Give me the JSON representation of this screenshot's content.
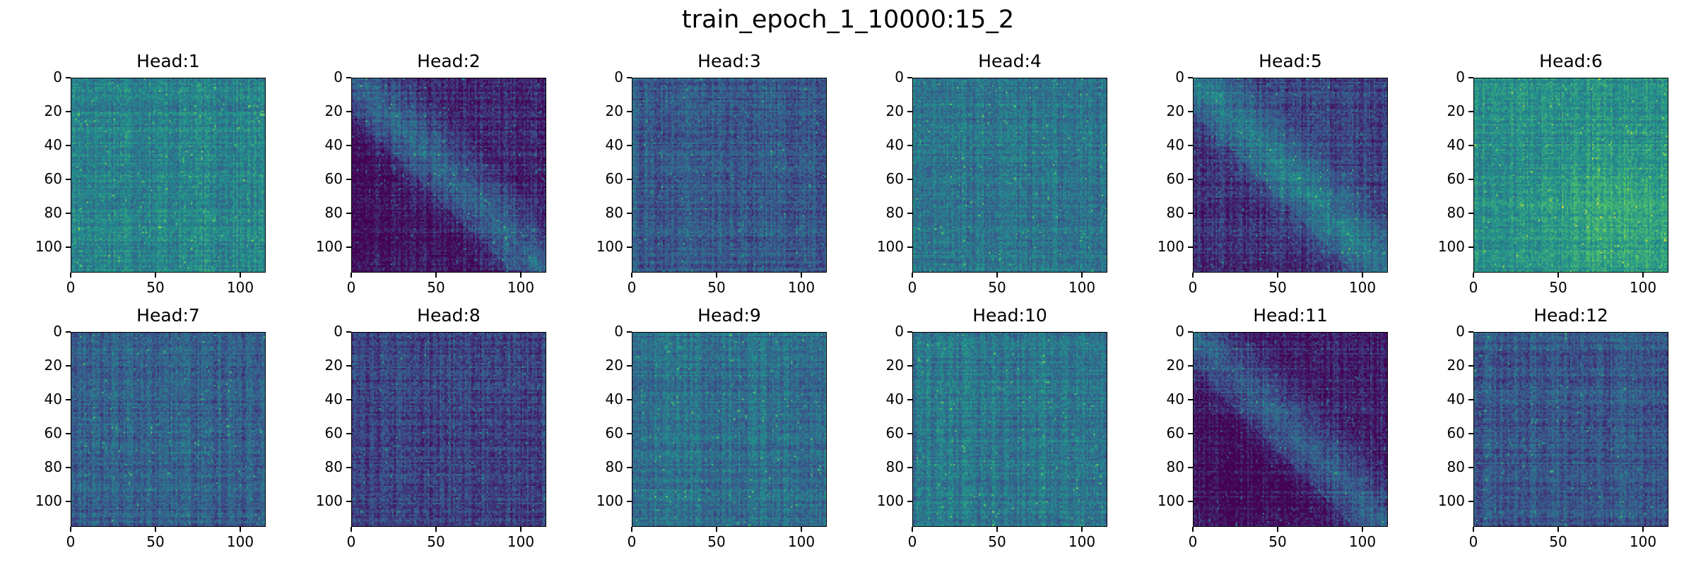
{
  "figure": {
    "title": "train_epoch_1_10000:15_2"
  },
  "chart_data": [
    {
      "type": "heatmap",
      "title": "Head:1",
      "xticks": [
        0,
        50,
        100
      ],
      "yticks": [
        0,
        20,
        40,
        60,
        80,
        100
      ],
      "xlim": [
        0,
        115
      ],
      "ylim": [
        115,
        0
      ],
      "colormap": "viridis",
      "pattern": "uniform-mid",
      "base_level": 0.45
    },
    {
      "type": "heatmap",
      "title": "Head:2",
      "xticks": [
        0,
        50,
        100
      ],
      "yticks": [
        0,
        20,
        40,
        60,
        80,
        100
      ],
      "xlim": [
        0,
        115
      ],
      "ylim": [
        115,
        0
      ],
      "colormap": "viridis",
      "pattern": "diagonal",
      "base_level": 0.12
    },
    {
      "type": "heatmap",
      "title": "Head:3",
      "xticks": [
        0,
        50,
        100
      ],
      "yticks": [
        0,
        20,
        40,
        60,
        80,
        100
      ],
      "xlim": [
        0,
        115
      ],
      "ylim": [
        115,
        0
      ],
      "colormap": "viridis",
      "pattern": "uniform-low",
      "base_level": 0.28
    },
    {
      "type": "heatmap",
      "title": "Head:4",
      "xticks": [
        0,
        50,
        100
      ],
      "yticks": [
        0,
        20,
        40,
        60,
        80,
        100
      ],
      "xlim": [
        0,
        115
      ],
      "ylim": [
        115,
        0
      ],
      "colormap": "viridis",
      "pattern": "uniform-mid",
      "base_level": 0.38
    },
    {
      "type": "heatmap",
      "title": "Head:5",
      "xticks": [
        0,
        50,
        100
      ],
      "yticks": [
        0,
        20,
        40,
        60,
        80,
        100
      ],
      "xlim": [
        0,
        115
      ],
      "ylim": [
        115,
        0
      ],
      "colormap": "viridis",
      "pattern": "diagonal",
      "base_level": 0.2
    },
    {
      "type": "heatmap",
      "title": "Head:6",
      "xticks": [
        0,
        50,
        100
      ],
      "yticks": [
        0,
        20,
        40,
        60,
        80,
        100
      ],
      "xlim": [
        0,
        115
      ],
      "ylim": [
        115,
        0
      ],
      "colormap": "viridis",
      "pattern": "uniform-high",
      "base_level": 0.5
    },
    {
      "type": "heatmap",
      "title": "Head:7",
      "xticks": [
        0,
        50,
        100
      ],
      "yticks": [
        0,
        20,
        40,
        60,
        80,
        100
      ],
      "xlim": [
        0,
        115
      ],
      "ylim": [
        115,
        0
      ],
      "colormap": "viridis",
      "pattern": "uniform-low",
      "base_level": 0.3
    },
    {
      "type": "heatmap",
      "title": "Head:8",
      "xticks": [
        0,
        50,
        100
      ],
      "yticks": [
        0,
        20,
        40,
        60,
        80,
        100
      ],
      "xlim": [
        0,
        115
      ],
      "ylim": [
        115,
        0
      ],
      "colormap": "viridis",
      "pattern": "uniform-low",
      "base_level": 0.2
    },
    {
      "type": "heatmap",
      "title": "Head:9",
      "xticks": [
        0,
        50,
        100
      ],
      "yticks": [
        0,
        20,
        40,
        60,
        80,
        100
      ],
      "xlim": [
        0,
        115
      ],
      "ylim": [
        115,
        0
      ],
      "colormap": "viridis",
      "pattern": "uniform-mid",
      "base_level": 0.36
    },
    {
      "type": "heatmap",
      "title": "Head:10",
      "xticks": [
        0,
        50,
        100
      ],
      "yticks": [
        0,
        20,
        40,
        60,
        80,
        100
      ],
      "xlim": [
        0,
        115
      ],
      "ylim": [
        115,
        0
      ],
      "colormap": "viridis",
      "pattern": "uniform-mid",
      "base_level": 0.4
    },
    {
      "type": "heatmap",
      "title": "Head:11",
      "xticks": [
        0,
        50,
        100
      ],
      "yticks": [
        0,
        20,
        40,
        60,
        80,
        100
      ],
      "xlim": [
        0,
        115
      ],
      "ylim": [
        115,
        0
      ],
      "colormap": "viridis",
      "pattern": "diagonal",
      "base_level": 0.1
    },
    {
      "type": "heatmap",
      "title": "Head:12",
      "xticks": [
        0,
        50,
        100
      ],
      "yticks": [
        0,
        20,
        40,
        60,
        80,
        100
      ],
      "xlim": [
        0,
        115
      ],
      "ylim": [
        115,
        0
      ],
      "colormap": "viridis",
      "pattern": "uniform-low",
      "base_level": 0.27
    }
  ]
}
